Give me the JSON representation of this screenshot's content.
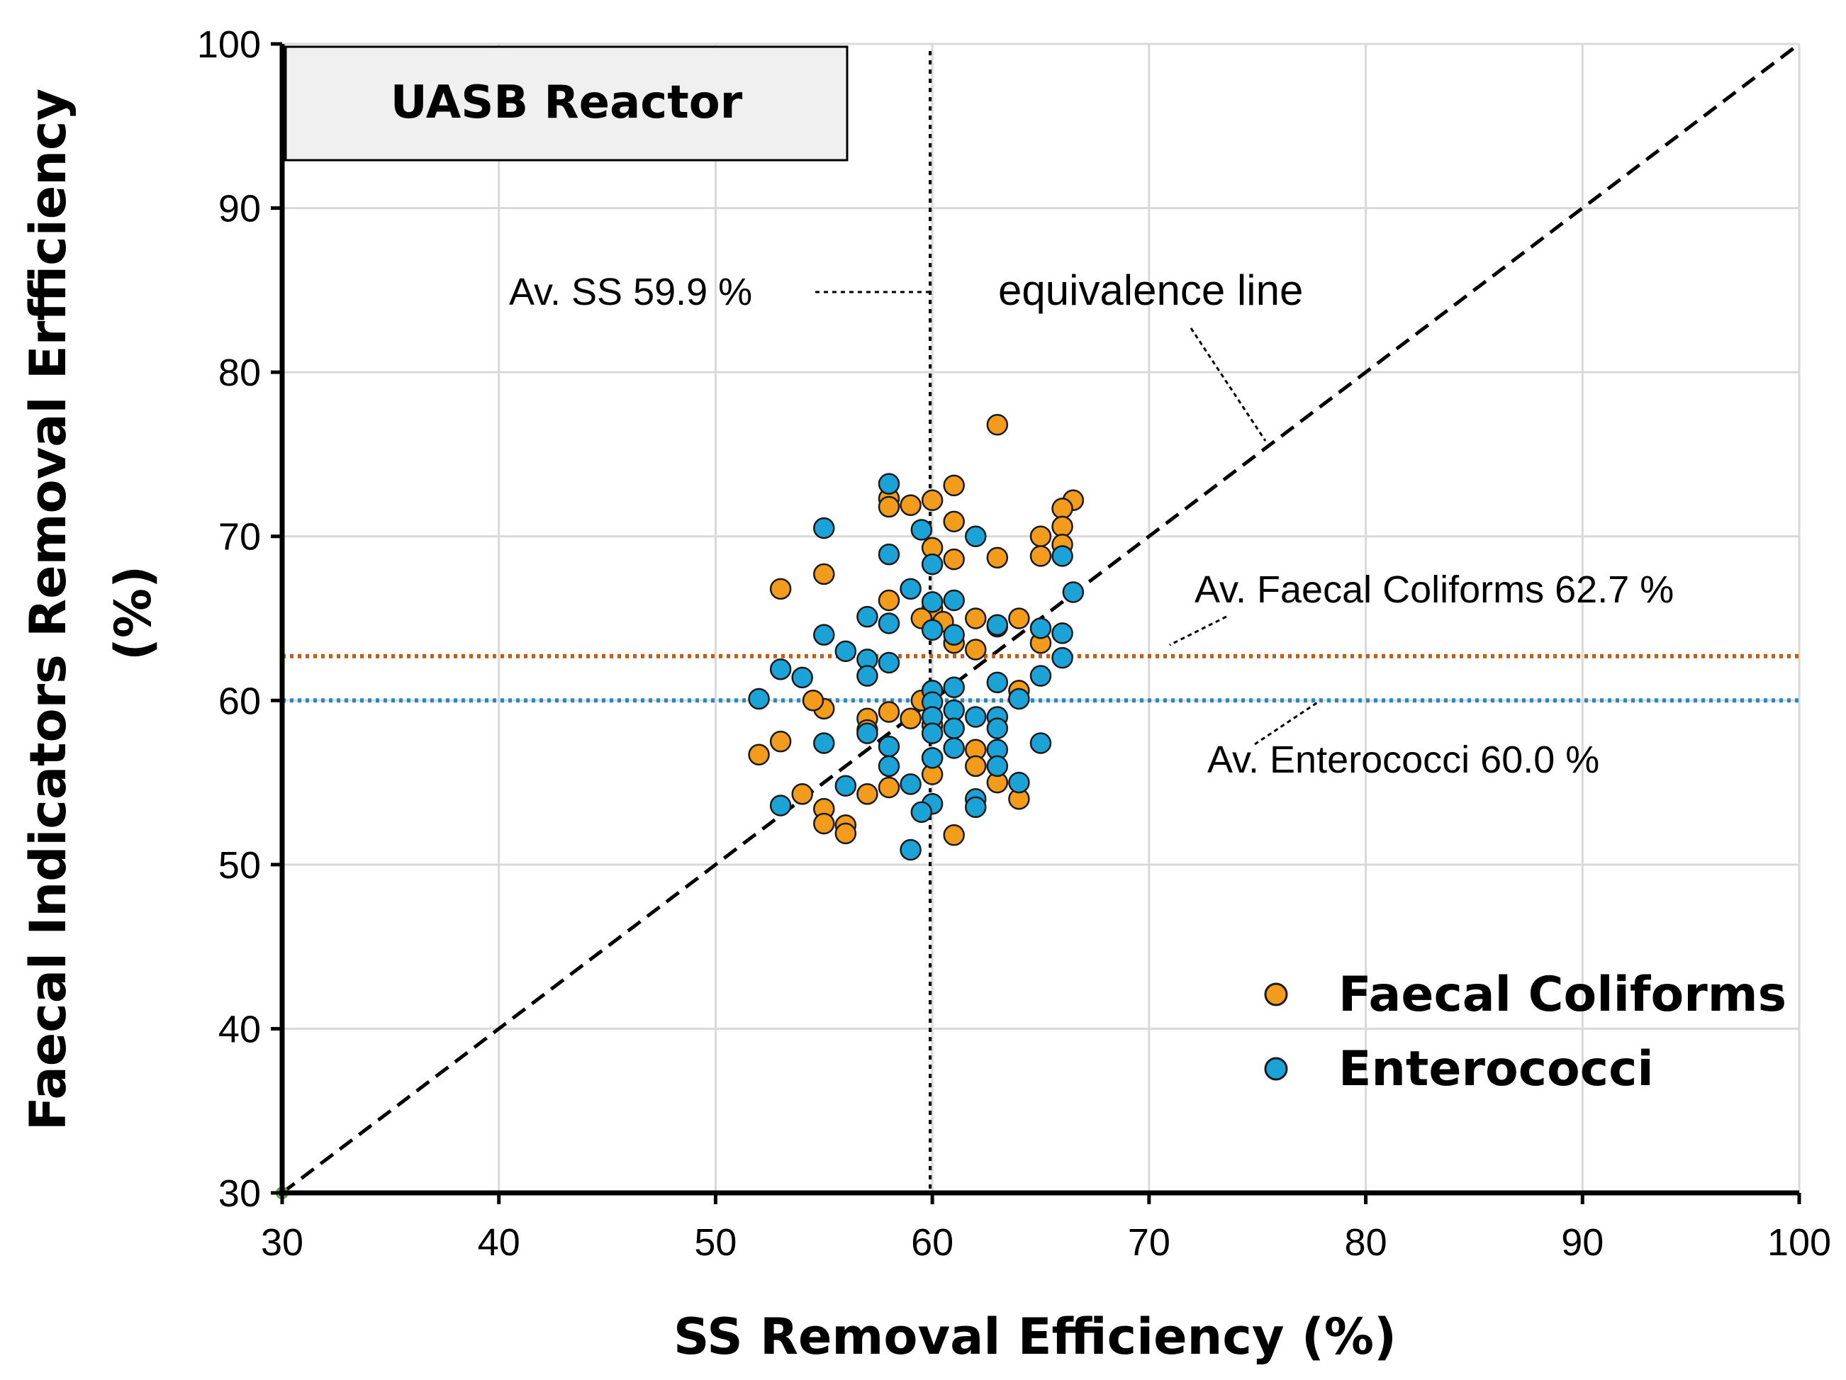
{
  "chart_data": {
    "type": "scatter",
    "title": "UASB Reactor",
    "xlabel": "SS Removal Efficiency  (%)",
    "ylabel": "Faecal Indicators Removal Erfficiency",
    "ylabel_unit": "(%)",
    "xlim": [
      30,
      100
    ],
    "ylim": [
      30,
      100
    ],
    "x_ticks": [
      30,
      40,
      50,
      60,
      70,
      80,
      90,
      100
    ],
    "y_ticks": [
      30,
      40,
      50,
      60,
      70,
      80,
      90,
      100
    ],
    "grid": true,
    "legend_position": "bottom-right",
    "reference_lines": {
      "equivalence": {
        "from": [
          30,
          30
        ],
        "to": [
          100,
          100
        ],
        "label": "equivalence line",
        "color": "#000000"
      },
      "avg_ss": {
        "x": 59.9,
        "label": "Av. SS 59.9 %",
        "color": "#000000"
      },
      "avg_fc": {
        "y": 62.7,
        "label": "Av. Faecal Coliforms 62.7  %",
        "color": "#C55A11"
      },
      "avg_ent": {
        "y": 60.0,
        "label": "Av. Enterococci 60.0 %",
        "color": "#2E86C1"
      }
    },
    "series": [
      {
        "name": "Faecal Coliforms",
        "color": "#F39C1B",
        "points": [
          [
            63.0,
            76.8
          ],
          [
            61.0,
            73.1
          ],
          [
            58.0,
            72.3
          ],
          [
            58.0,
            71.8
          ],
          [
            59.0,
            71.9
          ],
          [
            60.0,
            72.2
          ],
          [
            66.5,
            72.2
          ],
          [
            66.0,
            71.7
          ],
          [
            61.0,
            70.9
          ],
          [
            66.0,
            70.6
          ],
          [
            65.0,
            70.0
          ],
          [
            66.0,
            69.5
          ],
          [
            60.0,
            69.3
          ],
          [
            61.0,
            68.6
          ],
          [
            63.0,
            68.7
          ],
          [
            65.0,
            68.8
          ],
          [
            55.0,
            67.7
          ],
          [
            53.0,
            66.8
          ],
          [
            58.0,
            66.1
          ],
          [
            60.0,
            65.6
          ],
          [
            62.0,
            65.0
          ],
          [
            64.0,
            65.0
          ],
          [
            60.5,
            64.8
          ],
          [
            59.5,
            65.0
          ],
          [
            63.0,
            64.5
          ],
          [
            65.0,
            63.5
          ],
          [
            61.0,
            63.5
          ],
          [
            62.0,
            63.1
          ],
          [
            60.0,
            60.6
          ],
          [
            64.0,
            60.6
          ],
          [
            59.5,
            60.0
          ],
          [
            55.0,
            59.5
          ],
          [
            58.0,
            59.3
          ],
          [
            57.0,
            58.9
          ],
          [
            59.0,
            58.9
          ],
          [
            60.0,
            58.5
          ],
          [
            57.0,
            58.2
          ],
          [
            53.0,
            57.5
          ],
          [
            52.0,
            56.7
          ],
          [
            62.0,
            57.0
          ],
          [
            60.0,
            56.5
          ],
          [
            62.0,
            56.0
          ],
          [
            60.0,
            55.5
          ],
          [
            63.0,
            55.0
          ],
          [
            58.0,
            54.7
          ],
          [
            57.0,
            54.3
          ],
          [
            54.0,
            54.3
          ],
          [
            64.0,
            54.0
          ],
          [
            55.0,
            53.4
          ],
          [
            55.0,
            52.5
          ],
          [
            56.0,
            52.4
          ],
          [
            56.0,
            51.9
          ],
          [
            61.0,
            51.8
          ],
          [
            54.5,
            60.0
          ]
        ]
      },
      {
        "name": "Enterococci",
        "color": "#1BA3D8",
        "points": [
          [
            58.0,
            73.2
          ],
          [
            55.0,
            70.5
          ],
          [
            59.5,
            70.4
          ],
          [
            62.0,
            70.0
          ],
          [
            58.0,
            68.9
          ],
          [
            66.0,
            68.8
          ],
          [
            60.0,
            68.3
          ],
          [
            59.0,
            66.8
          ],
          [
            66.5,
            66.6
          ],
          [
            61.0,
            66.1
          ],
          [
            60.0,
            66.0
          ],
          [
            57.0,
            65.1
          ],
          [
            58.0,
            64.7
          ],
          [
            63.0,
            64.6
          ],
          [
            65.0,
            64.4
          ],
          [
            60.0,
            64.3
          ],
          [
            55.0,
            64.0
          ],
          [
            61.0,
            64.0
          ],
          [
            66.0,
            64.1
          ],
          [
            56.0,
            63.0
          ],
          [
            66.0,
            62.6
          ],
          [
            57.0,
            62.5
          ],
          [
            58.0,
            62.3
          ],
          [
            53.0,
            61.9
          ],
          [
            54.0,
            61.4
          ],
          [
            57.0,
            61.5
          ],
          [
            65.0,
            61.5
          ],
          [
            63.0,
            61.1
          ],
          [
            61.0,
            60.8
          ],
          [
            60.0,
            60.6
          ],
          [
            52.0,
            60.1
          ],
          [
            64.0,
            60.1
          ],
          [
            60.0,
            59.9
          ],
          [
            61.0,
            59.4
          ],
          [
            62.0,
            59.0
          ],
          [
            63.0,
            59.0
          ],
          [
            60.0,
            59.0
          ],
          [
            61.0,
            58.3
          ],
          [
            63.0,
            58.3
          ],
          [
            57.0,
            58.0
          ],
          [
            60.0,
            58.0
          ],
          [
            55.0,
            57.4
          ],
          [
            58.0,
            57.2
          ],
          [
            65.0,
            57.4
          ],
          [
            61.0,
            57.1
          ],
          [
            63.0,
            57.0
          ],
          [
            60.0,
            56.5
          ],
          [
            63.0,
            56.0
          ],
          [
            58.0,
            56.0
          ],
          [
            56.0,
            54.8
          ],
          [
            59.0,
            54.9
          ],
          [
            64.0,
            55.0
          ],
          [
            62.0,
            54.0
          ],
          [
            60.0,
            53.7
          ],
          [
            62.0,
            53.5
          ],
          [
            53.0,
            53.6
          ],
          [
            59.5,
            53.2
          ],
          [
            59.0,
            50.9
          ]
        ]
      }
    ],
    "marker_edge_color": "#1a1a1a",
    "origin_marker_color": "#6BA539"
  }
}
